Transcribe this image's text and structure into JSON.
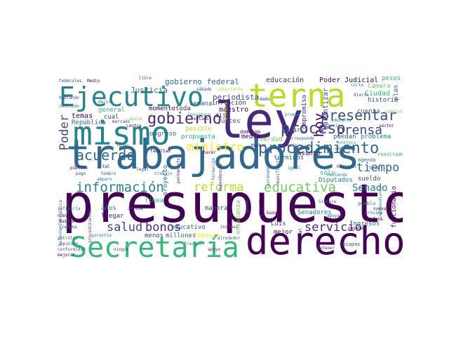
{
  "palette": [
    "#440154",
    "#482878",
    "#3e4989",
    "#31688e",
    "#26828e",
    "#1f9e89",
    "#35b779",
    "#6ece58",
    "#b5de2b",
    "#fde725"
  ],
  "words": [
    {
      "t": "presupuesto",
      "c": "#440154"
    },
    {
      "t": "trabajadores",
      "c": "#31688e"
    },
    {
      "t": "ley",
      "c": "#482878"
    },
    {
      "t": "derecho",
      "c": "#440154"
    },
    {
      "t": "mismo",
      "c": "#26828e"
    },
    {
      "t": "Secretaría",
      "c": "#35b779"
    },
    {
      "t": "terna",
      "c": "#b5de2b"
    },
    {
      "t": "Ejecutivo",
      "c": "#26828e"
    },
    {
      "t": "procedimiento",
      "c": "#31688e"
    },
    {
      "t": "proceso",
      "c": "#3e4989"
    },
    {
      "t": "gobierno",
      "c": "#482878"
    },
    {
      "t": "información",
      "c": "#26828e"
    },
    {
      "t": "educativa",
      "c": "#6ece58"
    },
    {
      "t": "presentar",
      "c": "#3e4989"
    },
    {
      "t": "acuerdo",
      "c": "#31688e"
    },
    {
      "t": "salud",
      "c": "#3e4989"
    },
    {
      "t": "bonos",
      "c": "#482878"
    },
    {
      "t": "servicio",
      "c": "#482878"
    },
    {
      "t": "prensa",
      "c": "#3e4989"
    },
    {
      "t": "tiempo",
      "c": "#31688e"
    },
    {
      "t": "reforma",
      "c": "#b5de2b"
    },
    {
      "t": "ministro",
      "c": "#fde725"
    },
    {
      "t": "Senado",
      "c": "#26828e"
    },
    {
      "t": "Poder",
      "c": "#3e4989"
    },
    {
      "t": "hoy",
      "c": "#440154"
    },
    {
      "t": "gobierno federal",
      "c": "#31688e"
    },
    {
      "t": "educación",
      "c": "#482878"
    },
    {
      "t": "Poder Judicial",
      "c": "#440154"
    },
    {
      "t": "pesos",
      "c": "#35b779"
    },
    {
      "t": "Justicia",
      "c": "#31688e"
    },
    {
      "t": "periodista",
      "c": "#3e4989"
    },
    {
      "t": "Cámara",
      "c": "#6ece58"
    },
    {
      "t": "Ciudad",
      "c": "#35b779"
    },
    {
      "t": "historia",
      "c": "#3e4989"
    },
    {
      "t": "plan",
      "c": "#31688e"
    },
    {
      "t": "inflación",
      "c": "#482878"
    },
    {
      "t": "maestro",
      "c": "#440154"
    },
    {
      "t": "garantizar",
      "c": "#3e4989"
    },
    {
      "t": "cuenta",
      "c": "#31688e"
    },
    {
      "t": "temas",
      "c": "#440154"
    },
    {
      "t": "general",
      "c": "#35b779"
    },
    {
      "t": "cual",
      "c": "#3e4989"
    },
    {
      "t": "República",
      "c": "#31688e"
    },
    {
      "t": "momento",
      "c": "#440154"
    },
    {
      "t": "toda",
      "c": "#482878"
    },
    {
      "t": "semana",
      "c": "#31688e"
    },
    {
      "t": "dijo",
      "c": "#440154"
    },
    {
      "t": "jueces",
      "c": "#3e4989"
    },
    {
      "t": "posible",
      "c": "#b5de2b"
    },
    {
      "t": "Congreso",
      "c": "#31688e"
    },
    {
      "t": "propuesta",
      "c": "#35b779"
    },
    {
      "t": "medio",
      "c": "#440154"
    },
    {
      "t": "dar",
      "c": "#3e4989"
    },
    {
      "t": "verdad",
      "c": "#6ece58"
    },
    {
      "t": "puedan",
      "c": "#31688e"
    },
    {
      "t": "problema",
      "c": "#26828e"
    },
    {
      "t": "sólo",
      "c": "#35b779"
    },
    {
      "t": "asunto",
      "c": "#440154"
    },
    {
      "t": "términos",
      "c": "#31688e"
    },
    {
      "t": "sueldo",
      "c": "#3e4989"
    },
    {
      "t": "Diputados",
      "c": "#26828e"
    },
    {
      "t": "funcionario",
      "c": "#440154"
    },
    {
      "t": "Ingresos",
      "c": "#31688e"
    },
    {
      "t": "años",
      "c": "#26828e"
    },
    {
      "t": "llegar",
      "c": "#482878"
    },
    {
      "t": "línea",
      "c": "#35b779"
    },
    {
      "t": "proyecto",
      "c": "#31688e"
    },
    {
      "t": "manera",
      "c": "#3e4989"
    },
    {
      "t": "enseñanza",
      "c": "#6ece58"
    },
    {
      "t": "Luis",
      "c": "#3e4989"
    },
    {
      "t": "mejor",
      "c": "#440154"
    },
    {
      "t": "Senadores",
      "c": "#26828e"
    },
    {
      "t": "educativo",
      "c": "#31688e"
    },
    {
      "t": "menos",
      "c": "#3e4989"
    },
    {
      "t": "millones",
      "c": "#31688e"
    },
    {
      "t": "Tabasco",
      "c": "#fde725"
    },
    {
      "t": "compromiso",
      "c": "#482878"
    },
    {
      "t": "domingo",
      "c": "#440154"
    },
    {
      "t": "Chiapas",
      "c": "#3e4989"
    },
    {
      "t": "pueblo",
      "c": "#26828e"
    },
    {
      "t": "agenda",
      "c": "#31688e"
    },
    {
      "t": "resultado",
      "c": "#35b779"
    },
    {
      "t": "libre",
      "c": "#31688e"
    },
    {
      "t": "mercado",
      "c": "#3e4989"
    },
    {
      "t": "Reforma Energética",
      "c": "#31688e"
    },
    {
      "t": "contra",
      "c": "#440154"
    },
    {
      "t": "ejemplo",
      "c": "#b5de2b"
    },
    {
      "t": "fiscal",
      "c": "#440154"
    },
    {
      "t": "federal",
      "c": "#440154"
    },
    {
      "t": "Nacional",
      "c": "#3e4989"
    },
    {
      "t": "Hacienda",
      "c": "#26828e"
    },
    {
      "t": "Siempre",
      "c": "#31688e"
    },
    {
      "t": "base",
      "c": "#440154"
    },
    {
      "t": "basurero",
      "c": "#440154"
    },
    {
      "t": "pago",
      "c": "#3e4989"
    },
    {
      "t": "detener",
      "c": "#482878"
    },
    {
      "t": "Corte",
      "c": "#26828e"
    },
    {
      "t": "diario",
      "c": "#3e4989"
    },
    {
      "t": "próxima",
      "c": "#31688e"
    },
    {
      "t": "mañana",
      "c": "#440154"
    },
    {
      "t": "facultad",
      "c": "#440154"
    },
    {
      "t": "Querétaro",
      "c": "#35b779"
    },
    {
      "t": "época",
      "c": "#6ece58"
    },
    {
      "t": "sábado",
      "c": "#3e4989"
    },
    {
      "t": "importante",
      "c": "#b5de2b"
    },
    {
      "t": "corresponde",
      "c": "#31688e"
    },
    {
      "t": "adelante",
      "c": "#26828e"
    },
    {
      "t": "criterio",
      "c": "#31688e"
    },
    {
      "t": "completo",
      "c": "#6ece58"
    },
    {
      "t": "estado",
      "c": "#440154"
    },
    {
      "t": "dado",
      "c": "#482878"
    },
    {
      "t": "nuevo",
      "c": "#440154"
    },
    {
      "t": "energía",
      "c": "#35b779"
    },
    {
      "t": "opinión",
      "c": "#3e4989"
    },
    {
      "t": "conformidad",
      "c": "#31688e"
    },
    {
      "t": "mejorar",
      "c": "#440154"
    },
    {
      "t": "ningún",
      "c": "#3e4989"
    },
    {
      "t": "fracaso",
      "c": "#26828e"
    },
    {
      "t": "apoyo",
      "c": "#482878"
    },
    {
      "t": "alrededor",
      "c": "#31688e"
    },
    {
      "t": "incluso",
      "c": "#3e4989"
    },
    {
      "t": "pasado",
      "c": "#440154"
    },
    {
      "t": "apoyar",
      "c": "#31688e"
    },
    {
      "t": "hablando",
      "c": "#3e4989"
    },
    {
      "t": "Muchas",
      "c": "#482878"
    },
    {
      "t": "prueba",
      "c": "#26828e"
    },
    {
      "t": "poderes",
      "c": "#31688e"
    },
    {
      "t": "nueva",
      "c": "#440154"
    },
    {
      "t": "sistema",
      "c": "#3e4989"
    },
    {
      "t": "hombre",
      "c": "#31688e"
    },
    {
      "t": "público",
      "c": "#440154"
    },
    {
      "t": "arriba",
      "c": "#3e4989"
    },
    {
      "t": "garantía",
      "c": "#26828e"
    },
    {
      "t": "petróleo",
      "c": "#31688e"
    },
    {
      "t": "federales",
      "c": "#3e4989"
    },
    {
      "t": "Medio",
      "c": "#440154"
    },
    {
      "t": "decir",
      "c": "#31688e"
    },
    {
      "t": "lugar",
      "c": "#26828e"
    },
    {
      "t": "dependencia",
      "c": "#482878"
    },
    {
      "t": "formación",
      "c": "#31688e"
    },
    {
      "t": "comisión",
      "c": "#3e4989"
    },
    {
      "t": "igual",
      "c": "#26828e"
    },
    {
      "t": "sector",
      "c": "#440154"
    },
    {
      "t": "autónomos",
      "c": "#31688e"
    },
    {
      "t": "manifiesto",
      "c": "#3e4989"
    },
    {
      "t": "independiente",
      "c": "#26828e"
    },
    {
      "t": "precio",
      "c": "#482878"
    },
    {
      "t": "gente",
      "c": "#31688e"
    },
    {
      "t": "tasa",
      "c": "#3e4989"
    },
    {
      "t": "refinería",
      "c": "#26828e"
    },
    {
      "t": "tal",
      "c": "#440154"
    },
    {
      "t": "amparo",
      "c": "#31688e"
    },
    {
      "t": "procedimientos",
      "c": "#3e4989"
    },
    {
      "t": "hacer",
      "c": "#440154"
    },
    {
      "t": "trabajo",
      "c": "#26828e"
    },
    {
      "t": "permanente",
      "c": "#482878"
    },
    {
      "t": "legislativo",
      "c": "#31688e"
    },
    {
      "t": "legal",
      "c": "#3e4989"
    }
  ]
}
